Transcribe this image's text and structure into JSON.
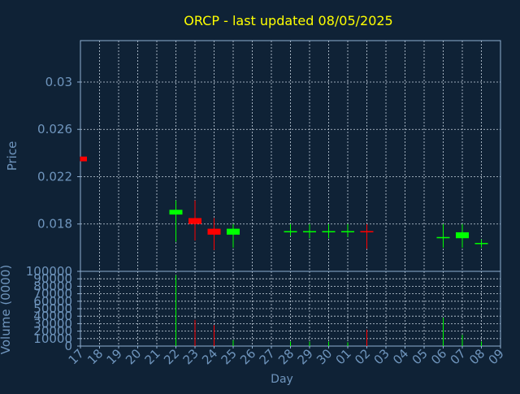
{
  "colors": {
    "background": "#0f2236",
    "axis": "#8fb0d2",
    "grid": "#c8d4e0",
    "title": "#ffff00",
    "label": "#6f95bd",
    "up": "#00ff00",
    "down": "#ff0000"
  },
  "chart_data": {
    "type": "candlestick",
    "title": "ORCP - last updated 08/05/2025",
    "xlabel": "Day",
    "price_panel": {
      "ylabel": "Price",
      "ylim": [
        0.014,
        0.0335
      ],
      "yticks": [
        {
          "value": 0.018,
          "label": "0.018"
        },
        {
          "value": 0.022,
          "label": "0.022"
        },
        {
          "value": 0.026,
          "label": "0.026"
        },
        {
          "value": 0.03,
          "label": "0.03"
        }
      ]
    },
    "volume_panel": {
      "ylabel": "Volume (0000)",
      "ylim": [
        0,
        100000
      ],
      "yticks": [
        {
          "value": 0,
          "label": "0"
        },
        {
          "value": 10000,
          "label": "10000"
        },
        {
          "value": 20000,
          "label": "20000"
        },
        {
          "value": 30000,
          "label": "30000"
        },
        {
          "value": 40000,
          "label": "40000"
        },
        {
          "value": 50000,
          "label": "50000"
        },
        {
          "value": 60000,
          "label": "60000"
        },
        {
          "value": 70000,
          "label": "70000"
        },
        {
          "value": 80000,
          "label": "80000"
        },
        {
          "value": 90000,
          "label": "90000"
        },
        {
          "value": 100000,
          "label": "100000"
        }
      ]
    },
    "x_ticks": [
      "17",
      "18",
      "19",
      "20",
      "21",
      "22",
      "23",
      "24",
      "25",
      "26",
      "27",
      "28",
      "29",
      "30",
      "01",
      "02",
      "03",
      "04",
      "05",
      "06",
      "07",
      "08",
      "09"
    ],
    "candles": [
      {
        "x": "17",
        "open": 0.0237,
        "high": 0.0237,
        "low": 0.0233,
        "close": 0.0233,
        "volume": 0
      },
      {
        "x": "22",
        "open": 0.0188,
        "high": 0.02,
        "low": 0.0165,
        "close": 0.0192,
        "volume": 95000
      },
      {
        "x": "23",
        "open": 0.0185,
        "high": 0.02,
        "low": 0.0166,
        "close": 0.018,
        "volume": 35000
      },
      {
        "x": "24",
        "open": 0.0176,
        "high": 0.0185,
        "low": 0.0158,
        "close": 0.0171,
        "volume": 28000
      },
      {
        "x": "25",
        "open": 0.0171,
        "high": 0.018,
        "low": 0.016,
        "close": 0.0176,
        "volume": 8000
      },
      {
        "x": "28",
        "open": 0.0173,
        "high": 0.018,
        "low": 0.017,
        "close": 0.0174,
        "volume": 6000
      },
      {
        "x": "29",
        "open": 0.0173,
        "high": 0.018,
        "low": 0.0168,
        "close": 0.0174,
        "volume": 6000
      },
      {
        "x": "30",
        "open": 0.0173,
        "high": 0.018,
        "low": 0.0168,
        "close": 0.0174,
        "volume": 6000
      },
      {
        "x": "01",
        "open": 0.0173,
        "high": 0.018,
        "low": 0.0169,
        "close": 0.0174,
        "volume": 5000
      },
      {
        "x": "02",
        "open": 0.0174,
        "high": 0.018,
        "low": 0.0159,
        "close": 0.0173,
        "volume": 22000
      },
      {
        "x": "06",
        "open": 0.0168,
        "high": 0.018,
        "low": 0.016,
        "close": 0.0169,
        "volume": 38000
      },
      {
        "x": "07",
        "open": 0.0168,
        "high": 0.018,
        "low": 0.016,
        "close": 0.0173,
        "volume": 15000
      },
      {
        "x": "08",
        "open": 0.0163,
        "high": 0.0167,
        "low": 0.016,
        "close": 0.0164,
        "volume": 6000
      }
    ]
  }
}
